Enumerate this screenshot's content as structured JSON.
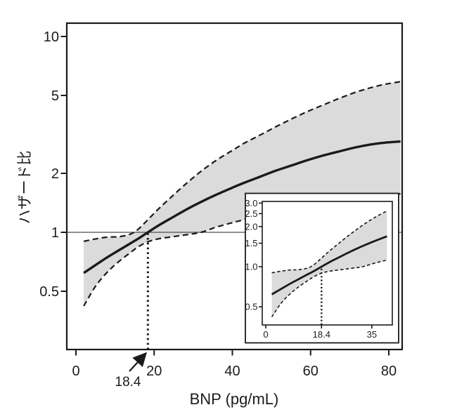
{
  "figure": {
    "background": "#ffffff"
  },
  "chart_data": {
    "type": "line",
    "title": "",
    "xlabel": "BNP (pg/mL)",
    "ylabel": "ハザード比",
    "yscale": "log",
    "grid": false,
    "legend": "none",
    "band_color": "#dbdbdb",
    "line_color": "#1a1a1a",
    "ref_line_color": "#4d4d4d",
    "reference_line_y": 1,
    "threshold": {
      "x": 18.4,
      "label": "18.4"
    },
    "x": [
      2,
      5,
      8,
      11,
      14,
      16,
      18.4,
      21,
      24,
      28,
      32,
      36,
      40,
      43,
      47,
      51,
      55,
      59,
      63,
      67,
      71,
      75,
      79,
      83
    ],
    "series": [
      {
        "name": "hazard_ratio",
        "style": "solid",
        "values": [
          0.62,
          0.68,
          0.745,
          0.81,
          0.88,
          0.93,
          1.0,
          1.08,
          1.17,
          1.3,
          1.43,
          1.56,
          1.69,
          1.79,
          1.92,
          2.06,
          2.19,
          2.33,
          2.46,
          2.58,
          2.7,
          2.8,
          2.87,
          2.91
        ]
      },
      {
        "name": "ci95_upper",
        "style": "dashed",
        "values": [
          0.9,
          0.925,
          0.945,
          0.95,
          0.98,
          1.04,
          1.16,
          1.31,
          1.49,
          1.76,
          2.05,
          2.34,
          2.62,
          2.85,
          3.13,
          3.45,
          3.78,
          4.12,
          4.45,
          4.8,
          5.15,
          5.45,
          5.7,
          5.88
        ]
      },
      {
        "name": "ci95_lower",
        "style": "dashed",
        "values": [
          0.42,
          0.53,
          0.625,
          0.71,
          0.79,
          0.845,
          0.895,
          0.925,
          0.945,
          0.97,
          1.0,
          1.065,
          1.12,
          1.16,
          1.22,
          1.285,
          1.345,
          1.4,
          1.45,
          1.49,
          1.525,
          1.55,
          1.565,
          1.57
        ]
      }
    ],
    "main_axes": {
      "xlim": [
        -2.3,
        83.4
      ],
      "ylim": [
        0.25,
        11.7
      ],
      "xticks": [
        0,
        20,
        40,
        60,
        80
      ],
      "xtick_labels": [
        "0",
        "20",
        "40",
        "60",
        "80"
      ],
      "yticks": [
        0.5,
        1,
        2,
        5,
        10
      ],
      "ytick_labels": [
        "0.5",
        "1",
        "2",
        "5",
        "10"
      ]
    },
    "inset_axes": {
      "xlim": [
        -1.2,
        41.8
      ],
      "ylim": [
        0.36,
        3.1
      ],
      "xticks": [
        0,
        18.4,
        35
      ],
      "xtick_labels": [
        "0",
        "18.4",
        "35"
      ],
      "yticks": [
        0.5,
        1.0,
        1.5,
        2.0,
        2.5,
        3.0
      ],
      "ytick_labels": [
        "0.5",
        "1.0",
        "1.5",
        "2.0",
        "2.5",
        "3.0"
      ],
      "points_used": 13
    }
  }
}
